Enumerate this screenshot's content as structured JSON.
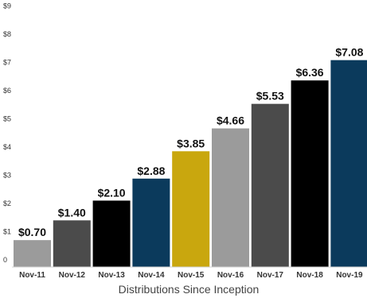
{
  "chart_data": {
    "type": "bar",
    "categories": [
      "Nov-11",
      "Nov-12",
      "Nov-13",
      "Nov-14",
      "Nov-15",
      "Nov-16",
      "Nov-17",
      "Nov-18",
      "Nov-19"
    ],
    "values": [
      0.7,
      1.4,
      2.1,
      2.88,
      3.85,
      4.66,
      5.53,
      6.36,
      7.08
    ],
    "data_labels": [
      "$0.70",
      "$1.40",
      "$2.10",
      "$2.88",
      "$3.85",
      "$4.66",
      "$5.53",
      "$6.36",
      "$7.08"
    ],
    "bar_colors": [
      "#9b9b9b",
      "#4b4b4b",
      "#000000",
      "#0b3a5c",
      "#c9a70e",
      "#9b9b9b",
      "#4b4b4b",
      "#000000",
      "#0b3a5c"
    ],
    "yticks": [
      0,
      1,
      2,
      3,
      4,
      5,
      6,
      7,
      8,
      9
    ],
    "ytick_labels": [
      "0",
      "$1",
      "$2",
      "$3",
      "$4",
      "$5",
      "$6",
      "$7",
      "$8",
      "$9"
    ],
    "ylim": [
      0,
      9
    ],
    "xlabel": "Distributions Since Inception",
    "ylabel": "",
    "title": "",
    "grid": false,
    "legend": "none"
  }
}
